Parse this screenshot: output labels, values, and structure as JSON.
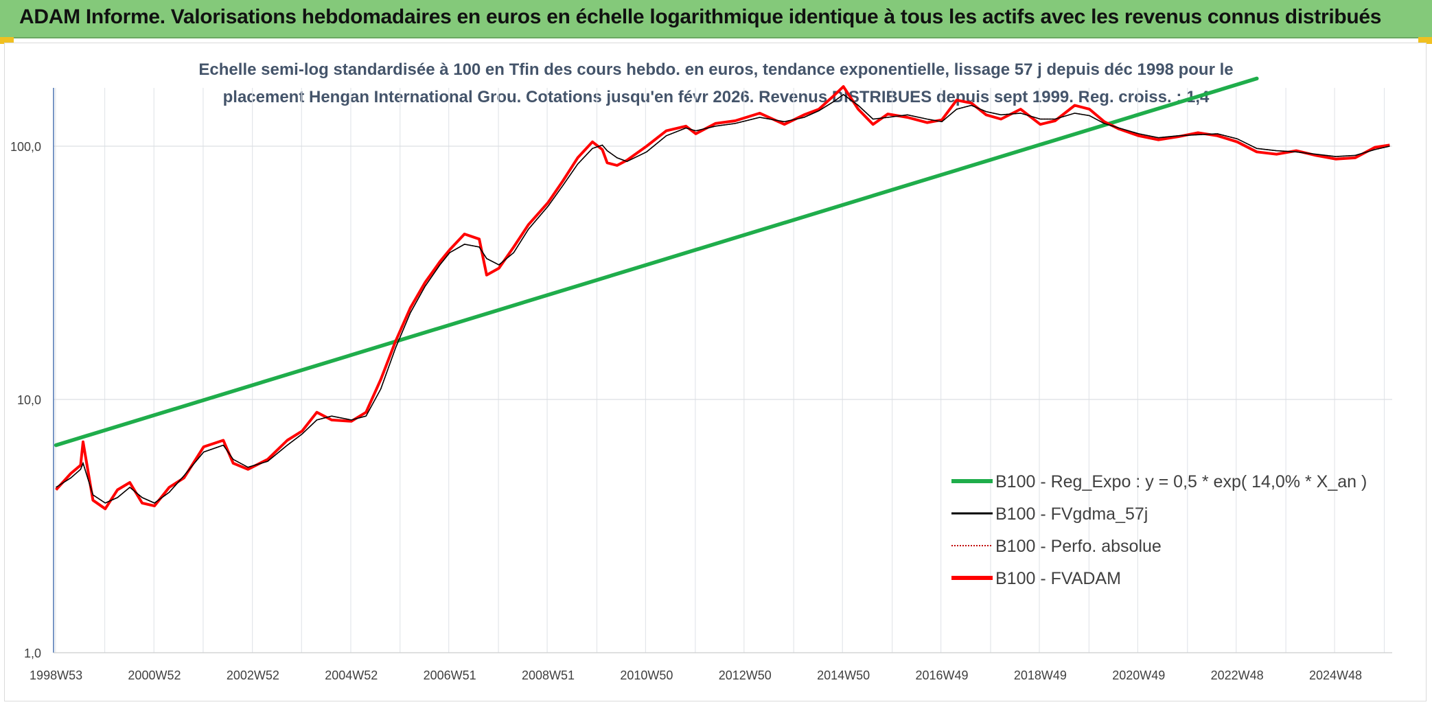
{
  "header": {
    "title": "ADAM Informe. Valorisations hebdomadaires en euros en échelle logarithmique identique à tous les actifs avec les revenus connus distribués"
  },
  "colors": {
    "banner_bg": "#84c97a",
    "regression": "#1fad4b",
    "moving_average": "#000000",
    "perf_absolue": "#c00000",
    "fvadam": "#ff0000"
  },
  "chart_data": {
    "type": "line",
    "title_line1": "Echelle semi-log standardisée à 100 en Tfin des cours hebdo. en euros, tendance exponentielle, lissage 57 j depuis déc 1998 pour le",
    "title_line2": "placement Hengan International Grou. Cotations jusqu'en févr 2026. Revenus DISTRIBUES depuis sept 1999. Reg. croiss. : 1,4",
    "y_scale": "log",
    "ylim": [
      1,
      170
    ],
    "y_ticks": [
      "1,0",
      "10,0",
      "100,0"
    ],
    "xlim": [
      1998.95,
      2026.15
    ],
    "x_ticks": [
      "1998W53",
      "2000W52",
      "2002W52",
      "2004W52",
      "2006W51",
      "2008W51",
      "2010W50",
      "2012W50",
      "2014W50",
      "2016W49",
      "2018W49",
      "2020W49",
      "2022W48",
      "2024W48"
    ],
    "grid": true,
    "legend_position": "right",
    "x": [
      1999.0,
      1999.3,
      1999.5,
      1999.55,
      1999.75,
      2000.0,
      2000.25,
      2000.5,
      2000.75,
      2001.0,
      2001.3,
      2001.6,
      2002.0,
      2002.4,
      2002.6,
      2002.9,
      2003.3,
      2003.7,
      2004.0,
      2004.3,
      2004.6,
      2005.0,
      2005.3,
      2005.6,
      2005.9,
      2006.2,
      2006.5,
      2006.8,
      2007.0,
      2007.3,
      2007.6,
      2007.75,
      2008.0,
      2008.3,
      2008.6,
      2009.0,
      2009.3,
      2009.6,
      2009.9,
      2010.1,
      2010.2,
      2010.4,
      2010.6,
      2011.0,
      2011.4,
      2011.8,
      2012.0,
      2012.4,
      2012.8,
      2013.3,
      2013.8,
      2014.2,
      2014.5,
      2014.8,
      2015.0,
      2015.3,
      2015.6,
      2015.9,
      2016.3,
      2016.7,
      2017.0,
      2017.3,
      2017.6,
      2017.9,
      2018.2,
      2018.6,
      2019.0,
      2019.3,
      2019.7,
      2020.0,
      2020.3,
      2020.6,
      2021.0,
      2021.4,
      2021.8,
      2022.2,
      2022.6,
      2023.0,
      2023.4,
      2023.8,
      2024.2,
      2024.6,
      2025.0,
      2025.4,
      2025.8,
      2026.1
    ],
    "series": [
      {
        "name": "B100 - Reg_Expo : y = 0,5 * exp( 14,0% *  X_an )",
        "style": "thick-line",
        "color": "#1fad4b",
        "x": [
          1999.0,
          2023.4
        ],
        "values": [
          6.6,
          185
        ]
      },
      {
        "name": "B100 - FVgdma_57j",
        "style": "thin-line",
        "color": "#000000",
        "values": [
          4.5,
          4.9,
          5.3,
          5.6,
          4.2,
          3.9,
          4.1,
          4.5,
          4.1,
          3.9,
          4.3,
          5.0,
          6.2,
          6.6,
          5.8,
          5.4,
          5.7,
          6.6,
          7.3,
          8.3,
          8.6,
          8.3,
          8.6,
          11,
          16,
          22,
          28,
          34,
          38,
          41,
          40,
          36,
          34,
          38,
          47,
          58,
          70,
          85,
          98,
          101,
          96,
          90,
          87,
          95,
          110,
          118,
          115,
          120,
          123,
          130,
          125,
          130,
          138,
          150,
          160,
          145,
          128,
          130,
          133,
          128,
          125,
          140,
          145,
          137,
          133,
          135,
          128,
          128,
          135,
          132,
          123,
          118,
          112,
          108,
          110,
          111,
          112,
          107,
          98,
          96,
          95,
          93,
          91,
          92,
          97,
          100
        ]
      },
      {
        "name": "B100 - Perfo. absolue",
        "style": "dotted-line",
        "color": "#c00000",
        "values": [
          4.5,
          4.9,
          5.3,
          5.6,
          4.2,
          3.9,
          4.1,
          4.5,
          4.1,
          3.9,
          4.3,
          5.0,
          6.2,
          6.6,
          5.8,
          5.4,
          5.7,
          6.6,
          7.3,
          8.3,
          8.6,
          8.3,
          8.6,
          11,
          16,
          22,
          28,
          34,
          38,
          41,
          40,
          36,
          34,
          38,
          47,
          58,
          70,
          85,
          98,
          101,
          96,
          90,
          87,
          95,
          110,
          118,
          115,
          120,
          123,
          130,
          125,
          130,
          138,
          150,
          160,
          145,
          128,
          130,
          133,
          128,
          125,
          140,
          145,
          137,
          133,
          135,
          128,
          128,
          135,
          132,
          123,
          118,
          112,
          108,
          110,
          111,
          112,
          107,
          98,
          96,
          95,
          93,
          91,
          92,
          97,
          100
        ]
      },
      {
        "name": "B100 - FVADAM",
        "style": "thick-line",
        "color": "#ff0000",
        "values": [
          4.4,
          5.1,
          5.5,
          6.8,
          4.0,
          3.7,
          4.4,
          4.7,
          3.9,
          3.8,
          4.5,
          4.9,
          6.5,
          6.9,
          5.6,
          5.3,
          5.8,
          6.9,
          7.5,
          8.9,
          8.3,
          8.2,
          8.9,
          12,
          17,
          23,
          29,
          35,
          39,
          45,
          43,
          31,
          33,
          40,
          49,
          60,
          73,
          90,
          104,
          97,
          86,
          84,
          88,
          100,
          115,
          120,
          112,
          123,
          126,
          135,
          122,
          133,
          140,
          158,
          172,
          140,
          122,
          134,
          130,
          124,
          127,
          152,
          148,
          133,
          128,
          140,
          122,
          126,
          145,
          140,
          125,
          117,
          110,
          106,
          109,
          113,
          110,
          104,
          95,
          93,
          96,
          92,
          89,
          90,
          99,
          101
        ]
      }
    ]
  }
}
